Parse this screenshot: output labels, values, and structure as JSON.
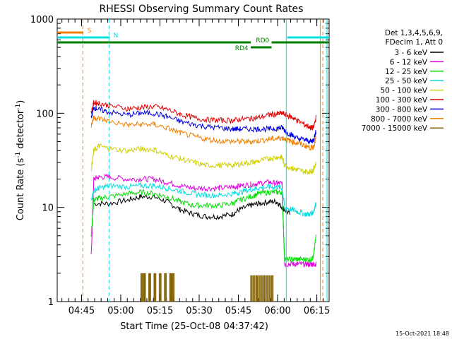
{
  "chart_data": {
    "type": "line",
    "title": "RHESSI Observing Summary Count Rates",
    "xlabel": "Start Time (25-Oct-08 04:37:42)",
    "ylabel": "Count Rate (s",
    "ylabel_sup": "-1",
    "ylabel_mid": " detector",
    "ylabel_end": ")",
    "ylog": true,
    "ylim": [
      1,
      1000
    ],
    "yticks": [
      {
        "v": 1,
        "label": "1"
      },
      {
        "v": 10,
        "label": "10"
      },
      {
        "v": 100,
        "label": "100"
      },
      {
        "v": 1000,
        "label": "1000"
      }
    ],
    "xlim": [
      -2,
      102
    ],
    "xticks": [
      {
        "t": 7.3,
        "label": "04:45"
      },
      {
        "t": 22.3,
        "label": "05:00"
      },
      {
        "t": 37.3,
        "label": "05:15"
      },
      {
        "t": 52.3,
        "label": "05:30"
      },
      {
        "t": 67.3,
        "label": "05:45"
      },
      {
        "t": 82.3,
        "label": "06:00"
      },
      {
        "t": 97.3,
        "label": "06:15"
      }
    ],
    "legend_header": [
      "Det 1,3,4,5,6,9,",
      "FDecim 1, Att 0"
    ],
    "legend_position": "right",
    "series": [
      {
        "name": "3 - 6 keV",
        "color": "#000000",
        "x": [
          12,
          18,
          25,
          30,
          35,
          40,
          45,
          50,
          55,
          60,
          65,
          68,
          72,
          75,
          79,
          82,
          84,
          87,
          89,
          90.5,
          92,
          94,
          96,
          97
        ],
        "values": [
          11,
          11,
          12,
          13,
          13,
          11.5,
          9.5,
          8.5,
          8,
          8,
          8.5,
          9.5,
          10.5,
          11,
          11.5,
          11.5,
          10,
          8.5,
          null,
          null,
          null,
          null,
          null,
          null
        ]
      },
      {
        "name": "6 - 12 keV",
        "color": "#e000e0",
        "x": [
          11,
          12,
          14,
          18,
          25,
          30,
          35,
          40,
          45,
          50,
          55,
          60,
          65,
          68,
          72,
          75,
          79,
          82,
          84,
          85,
          88,
          90,
          93,
          95,
          96,
          97
        ],
        "values": [
          3,
          20,
          21,
          21,
          20,
          20,
          20,
          18.5,
          17,
          16,
          16,
          16,
          16.5,
          17,
          17.5,
          18,
          18.5,
          18,
          18,
          2.5,
          2.5,
          2.5,
          2.5,
          2.5,
          2.5,
          2.5
        ]
      },
      {
        "name": "12 - 25 keV",
        "color": "#00e000",
        "x": [
          11,
          12,
          14,
          18,
          25,
          30,
          35,
          40,
          45,
          50,
          55,
          60,
          65,
          68,
          72,
          75,
          79,
          82,
          84,
          85,
          88,
          90,
          93,
          95,
          96,
          97
        ],
        "values": [
          5,
          12,
          12.5,
          13,
          14,
          14.5,
          14,
          13,
          11.5,
          10.5,
          10.5,
          10.5,
          11,
          12,
          13,
          14,
          14.5,
          14.5,
          14.5,
          2.8,
          2.8,
          2.8,
          2.8,
          2.8,
          3,
          5
        ]
      },
      {
        "name": "25 - 50 keV",
        "color": "#00e0e0",
        "x": [
          11,
          12,
          14,
          18,
          25,
          30,
          35,
          40,
          45,
          50,
          55,
          60,
          65,
          68,
          72,
          75,
          79,
          82,
          84,
          85,
          88,
          90,
          93,
          95,
          96,
          97
        ],
        "values": [
          12,
          15,
          16,
          17,
          16.5,
          17,
          17,
          16,
          15,
          14,
          13.5,
          13.5,
          14,
          14.5,
          15.5,
          16,
          16.5,
          16.5,
          16,
          10,
          9.5,
          9,
          8.5,
          8.5,
          9,
          11
        ]
      },
      {
        "name": "50 - 100 keV",
        "color": "#d0d000",
        "x": [
          11,
          12,
          14,
          18,
          25,
          30,
          35,
          40,
          45,
          50,
          55,
          60,
          65,
          68,
          72,
          75,
          79,
          82,
          84,
          85,
          88,
          90,
          93,
          95,
          96,
          97
        ],
        "values": [
          25,
          40,
          45,
          42,
          40,
          42,
          41,
          36,
          33,
          30,
          28,
          28,
          28,
          29,
          30,
          31,
          33,
          34,
          34,
          28,
          26,
          25,
          24,
          24,
          25,
          30
        ]
      },
      {
        "name": "100 - 300 keV",
        "color": "#e00000",
        "x": [
          11,
          12,
          14,
          18,
          25,
          30,
          35,
          40,
          45,
          50,
          55,
          60,
          65,
          68,
          72,
          75,
          79,
          82,
          84,
          86,
          88,
          90,
          93,
          95,
          96,
          97
        ],
        "values": [
          100,
          130,
          128,
          120,
          112,
          115,
          118,
          110,
          98,
          90,
          85,
          84,
          84,
          86,
          88,
          90,
          96,
          98,
          100,
          95,
          90,
          83,
          75,
          70,
          70,
          90
        ]
      },
      {
        "name": "300 - 800 keV",
        "color": "#0000e0",
        "x": [
          11,
          12,
          14,
          18,
          25,
          30,
          35,
          40,
          45,
          50,
          55,
          60,
          65,
          68,
          72,
          75,
          79,
          82,
          84,
          86,
          88,
          90,
          93,
          95,
          96,
          97
        ],
        "values": [
          90,
          115,
          110,
          102,
          96,
          100,
          100,
          92,
          82,
          76,
          72,
          70,
          68,
          68,
          68,
          68,
          68,
          69,
          70,
          62,
          58,
          54,
          52,
          50,
          52,
          64
        ]
      },
      {
        "name": "800 - 7000 keV",
        "color": "#f08000",
        "x": [
          11,
          12,
          14,
          18,
          25,
          30,
          35,
          40,
          45,
          50,
          55,
          60,
          65,
          68,
          72,
          75,
          79,
          82,
          84,
          86,
          88,
          90,
          93,
          95,
          96,
          97
        ],
        "values": [
          75,
          90,
          88,
          82,
          75,
          76,
          76,
          70,
          62,
          57,
          53,
          51,
          50,
          50,
          50,
          51,
          53,
          54,
          55,
          52,
          50,
          48,
          45,
          43,
          44,
          55
        ]
      },
      {
        "name": "7000 - 15000 keV",
        "color": "#806000",
        "x": [
          30,
          31,
          33,
          35,
          37,
          39,
          41,
          42
        ],
        "values": [
          2,
          2,
          2,
          2,
          2,
          2,
          2,
          2
        ]
      }
    ],
    "annotations": {
      "segments": [
        {
          "label": "S",
          "color": "#f08000",
          "x1": -2,
          "x2": 8,
          "y": 1,
          "label_x": 9.5
        },
        {
          "label": "N",
          "color": "#00e0e0",
          "x1": -2,
          "x2": 18,
          "y": 2,
          "label_x": 19.5
        },
        {
          "label": "N",
          "color": "#00e0e0",
          "x1": 86,
          "x2": 102,
          "y": 2,
          "label_x": null
        },
        {
          "label": "RD0",
          "color": "#008000",
          "x1": -2,
          "x2": 72,
          "y": 3,
          "label_x": 74
        },
        {
          "label": "RD0",
          "color": "#008000",
          "x1": 80,
          "x2": 102,
          "y": 3,
          "label_x": null
        },
        {
          "label": "RD4",
          "color": "#008000",
          "x1": 72,
          "x2": 80,
          "y": 4,
          "label_x": 66
        }
      ]
    },
    "vlines": [
      {
        "t": 7.8,
        "color": "#f08000",
        "dash": true
      },
      {
        "t": 17.8,
        "color": "#00e0e0",
        "dash": true
      },
      {
        "t": 85.6,
        "color": "#00e0e0",
        "dash": false
      },
      {
        "t": 98.6,
        "color": "#f08000",
        "dash": false
      },
      {
        "t": 99.6,
        "color": "#f08000",
        "dash": true
      },
      {
        "t": 101.2,
        "color": "#00e0e0",
        "dash": false
      }
    ],
    "grid": false
  },
  "footer": {
    "timestamp": "15-Oct-2021 18:48"
  }
}
